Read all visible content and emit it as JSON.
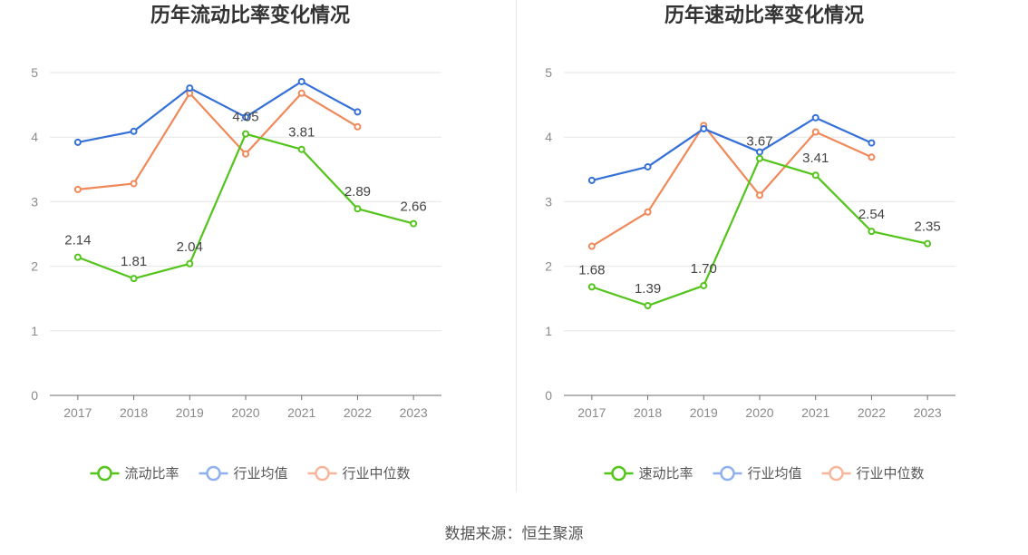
{
  "source": "数据来源：恒生聚源",
  "colors": {
    "company": "#52c41a",
    "industry_avg": "#3570d8",
    "industry_median": "#f0885a"
  },
  "chart_data": [
    {
      "type": "line",
      "title": "历年流动比率变化情况",
      "categories": [
        "2017",
        "2018",
        "2019",
        "2020",
        "2021",
        "2022",
        "2023"
      ],
      "ylim": [
        0,
        5
      ],
      "yticks": [
        0,
        1,
        2,
        3,
        4,
        5
      ],
      "grid": true,
      "legend_position": "bottom",
      "series": [
        {
          "name": "流动比率",
          "role": "company",
          "values": [
            2.14,
            1.81,
            2.04,
            4.05,
            3.81,
            2.89,
            2.66
          ],
          "labels": [
            "2.14",
            "1.81",
            "2.04",
            "4.05",
            "3.81",
            "2.89",
            "2.66"
          ]
        },
        {
          "name": "行业均值",
          "role": "industry_avg",
          "values": [
            3.92,
            4.09,
            4.76,
            4.31,
            4.86,
            4.39,
            null
          ]
        },
        {
          "name": "行业中位数",
          "role": "industry_median",
          "values": [
            3.19,
            3.28,
            4.68,
            3.74,
            4.68,
            4.16,
            null
          ]
        }
      ]
    },
    {
      "type": "line",
      "title": "历年速动比率变化情况",
      "categories": [
        "2017",
        "2018",
        "2019",
        "2020",
        "2021",
        "2022",
        "2023"
      ],
      "ylim": [
        0,
        5
      ],
      "yticks": [
        0,
        1,
        2,
        3,
        4,
        5
      ],
      "grid": true,
      "legend_position": "bottom",
      "series": [
        {
          "name": "速动比率",
          "role": "company",
          "values": [
            1.68,
            1.39,
            1.7,
            3.67,
            3.41,
            2.54,
            2.35
          ],
          "labels": [
            "1.68",
            "1.39",
            "1.70",
            "3.67",
            "3.41",
            "2.54",
            "2.35"
          ]
        },
        {
          "name": "行业均值",
          "role": "industry_avg",
          "values": [
            3.33,
            3.54,
            4.13,
            3.77,
            4.3,
            3.91,
            null
          ]
        },
        {
          "name": "行业中位数",
          "role": "industry_median",
          "values": [
            2.31,
            2.84,
            4.18,
            3.1,
            4.08,
            3.69,
            null
          ]
        }
      ]
    }
  ]
}
